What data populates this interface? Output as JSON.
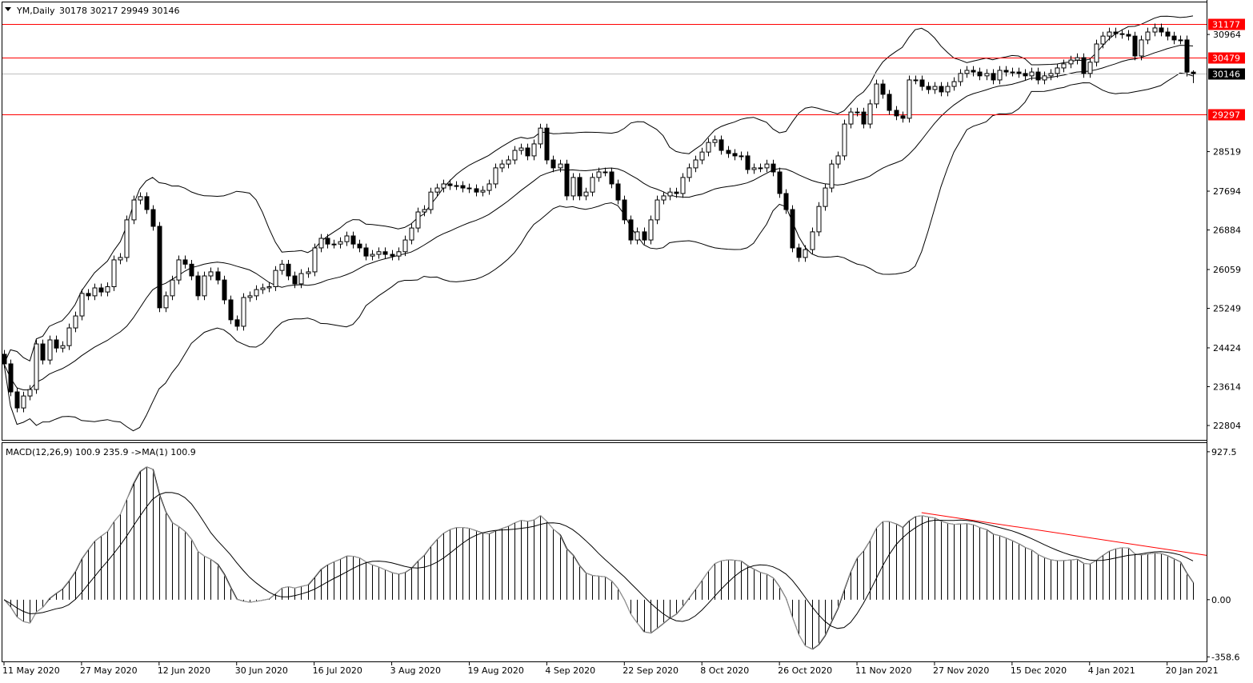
{
  "header": {
    "symbol_timeframe": "YM,Daily",
    "ohlc_text": "30178 30217 29949 30146"
  },
  "chart_data": [
    {
      "type": "candlestick",
      "title": "YM,Daily",
      "ohlc_last": {
        "open": 30178,
        "high": 30217,
        "low": 29949,
        "close": 30146
      },
      "close": [
        24090,
        23505,
        23170,
        23420,
        23555,
        24506,
        24170,
        24590,
        24420,
        24470,
        24840,
        25090,
        25560,
        25510,
        25675,
        25590,
        25700,
        26260,
        26310,
        27095,
        27510,
        27580,
        27310,
        26960,
        25260,
        25510,
        25840,
        26260,
        26170,
        25925,
        25510,
        25925,
        26010,
        25840,
        25425,
        25010,
        24875,
        25475,
        25510,
        25640,
        25675,
        25700,
        26040,
        26170,
        25925,
        25760,
        25975,
        26010,
        26510,
        26710,
        26590,
        26590,
        26640,
        26760,
        26590,
        26510,
        26340,
        26375,
        26430,
        26375,
        26340,
        26430,
        26675,
        26925,
        27260,
        27310,
        27675,
        27760,
        27845,
        27810,
        27810,
        27760,
        27745,
        27675,
        27710,
        27845,
        28180,
        28260,
        28345,
        28545,
        28595,
        28430,
        28680,
        29010,
        28345,
        28180,
        28260,
        27595,
        27980,
        27595,
        27675,
        27980,
        28095,
        28095,
        27845,
        27510,
        27095,
        26675,
        26845,
        26675,
        27095,
        27510,
        27595,
        27675,
        27645,
        27980,
        28180,
        28345,
        28510,
        28710,
        28765,
        28545,
        28480,
        28430,
        28430,
        28145,
        28180,
        28180,
        28260,
        28095,
        27645,
        27310,
        26510,
        26310,
        26475,
        26845,
        27375,
        27760,
        28260,
        28430,
        29095,
        29345,
        29345,
        29095,
        29515,
        29930,
        29715,
        29380,
        29265,
        29215,
        30015,
        30015,
        29880,
        29815,
        29880,
        29765,
        29880,
        29980,
        30150,
        30215,
        30180,
        30100,
        30150,
        30015,
        30215,
        30180,
        30180,
        30150,
        30100,
        30180,
        30015,
        30100,
        30150,
        30265,
        30350,
        30430,
        30480,
        30150,
        30385,
        30765,
        30930,
        31015,
        30980,
        30965,
        30930,
        30515,
        30850,
        31015,
        31100,
        31015,
        30930,
        30850,
        30850,
        30178,
        30146
      ],
      "ylim": [
        22504,
        31633
      ],
      "y_ticks": [
        "30964",
        "28519",
        "27694",
        "26884",
        "26059",
        "25249",
        "24424",
        "23614",
        "22804"
      ],
      "x_ticks": [
        "11 May 2020",
        "27 May 2020",
        "12 Jun 2020",
        "30 Jun 2020",
        "16 Jul 2020",
        "3 Aug 2020",
        "19 Aug 2020",
        "4 Sep 2020",
        "22 Sep 2020",
        "8 Oct 2020",
        "26 Oct 2020",
        "11 Nov 2020",
        "27 Nov 2020",
        "15 Dec 2020",
        "4 Jan 2021",
        "20 Jan 2021"
      ],
      "x_tick_every_bars": 12,
      "indicators": {
        "bollinger": {
          "period": 20,
          "deviations": 2,
          "color": "#000000"
        }
      },
      "horizontal_lines": [
        {
          "value": 31177,
          "label": "31177",
          "color": "#ff0000"
        },
        {
          "value": 30479,
          "label": "30479",
          "color": "#ff0000"
        },
        {
          "value": 30146,
          "label": "30146",
          "color": "#c0c0c0",
          "label_bg": "#000000"
        },
        {
          "value": 29297,
          "label": "29297",
          "color": "#ff0000"
        }
      ],
      "grid": false
    },
    {
      "type": "bar",
      "title": "MACD(12,26,9) 100.9 235.9  ->MA(1) 100.9",
      "params": {
        "fast": 12,
        "slow": 26,
        "signal": 9
      },
      "current": {
        "macd": 100.9,
        "signal": 235.9,
        "ma1": 100.9
      },
      "ylim": [
        -387,
        977
      ],
      "y_ticks": [
        "927.5",
        "0.00",
        "-358.6"
      ],
      "trendline": {
        "from": {
          "bar": 142,
          "value": 546
        },
        "to": {
          "bar": 187,
          "value": 278
        },
        "color": "#ff0000"
      },
      "ma1_color": "#a0a0a0",
      "grid": false
    }
  ]
}
